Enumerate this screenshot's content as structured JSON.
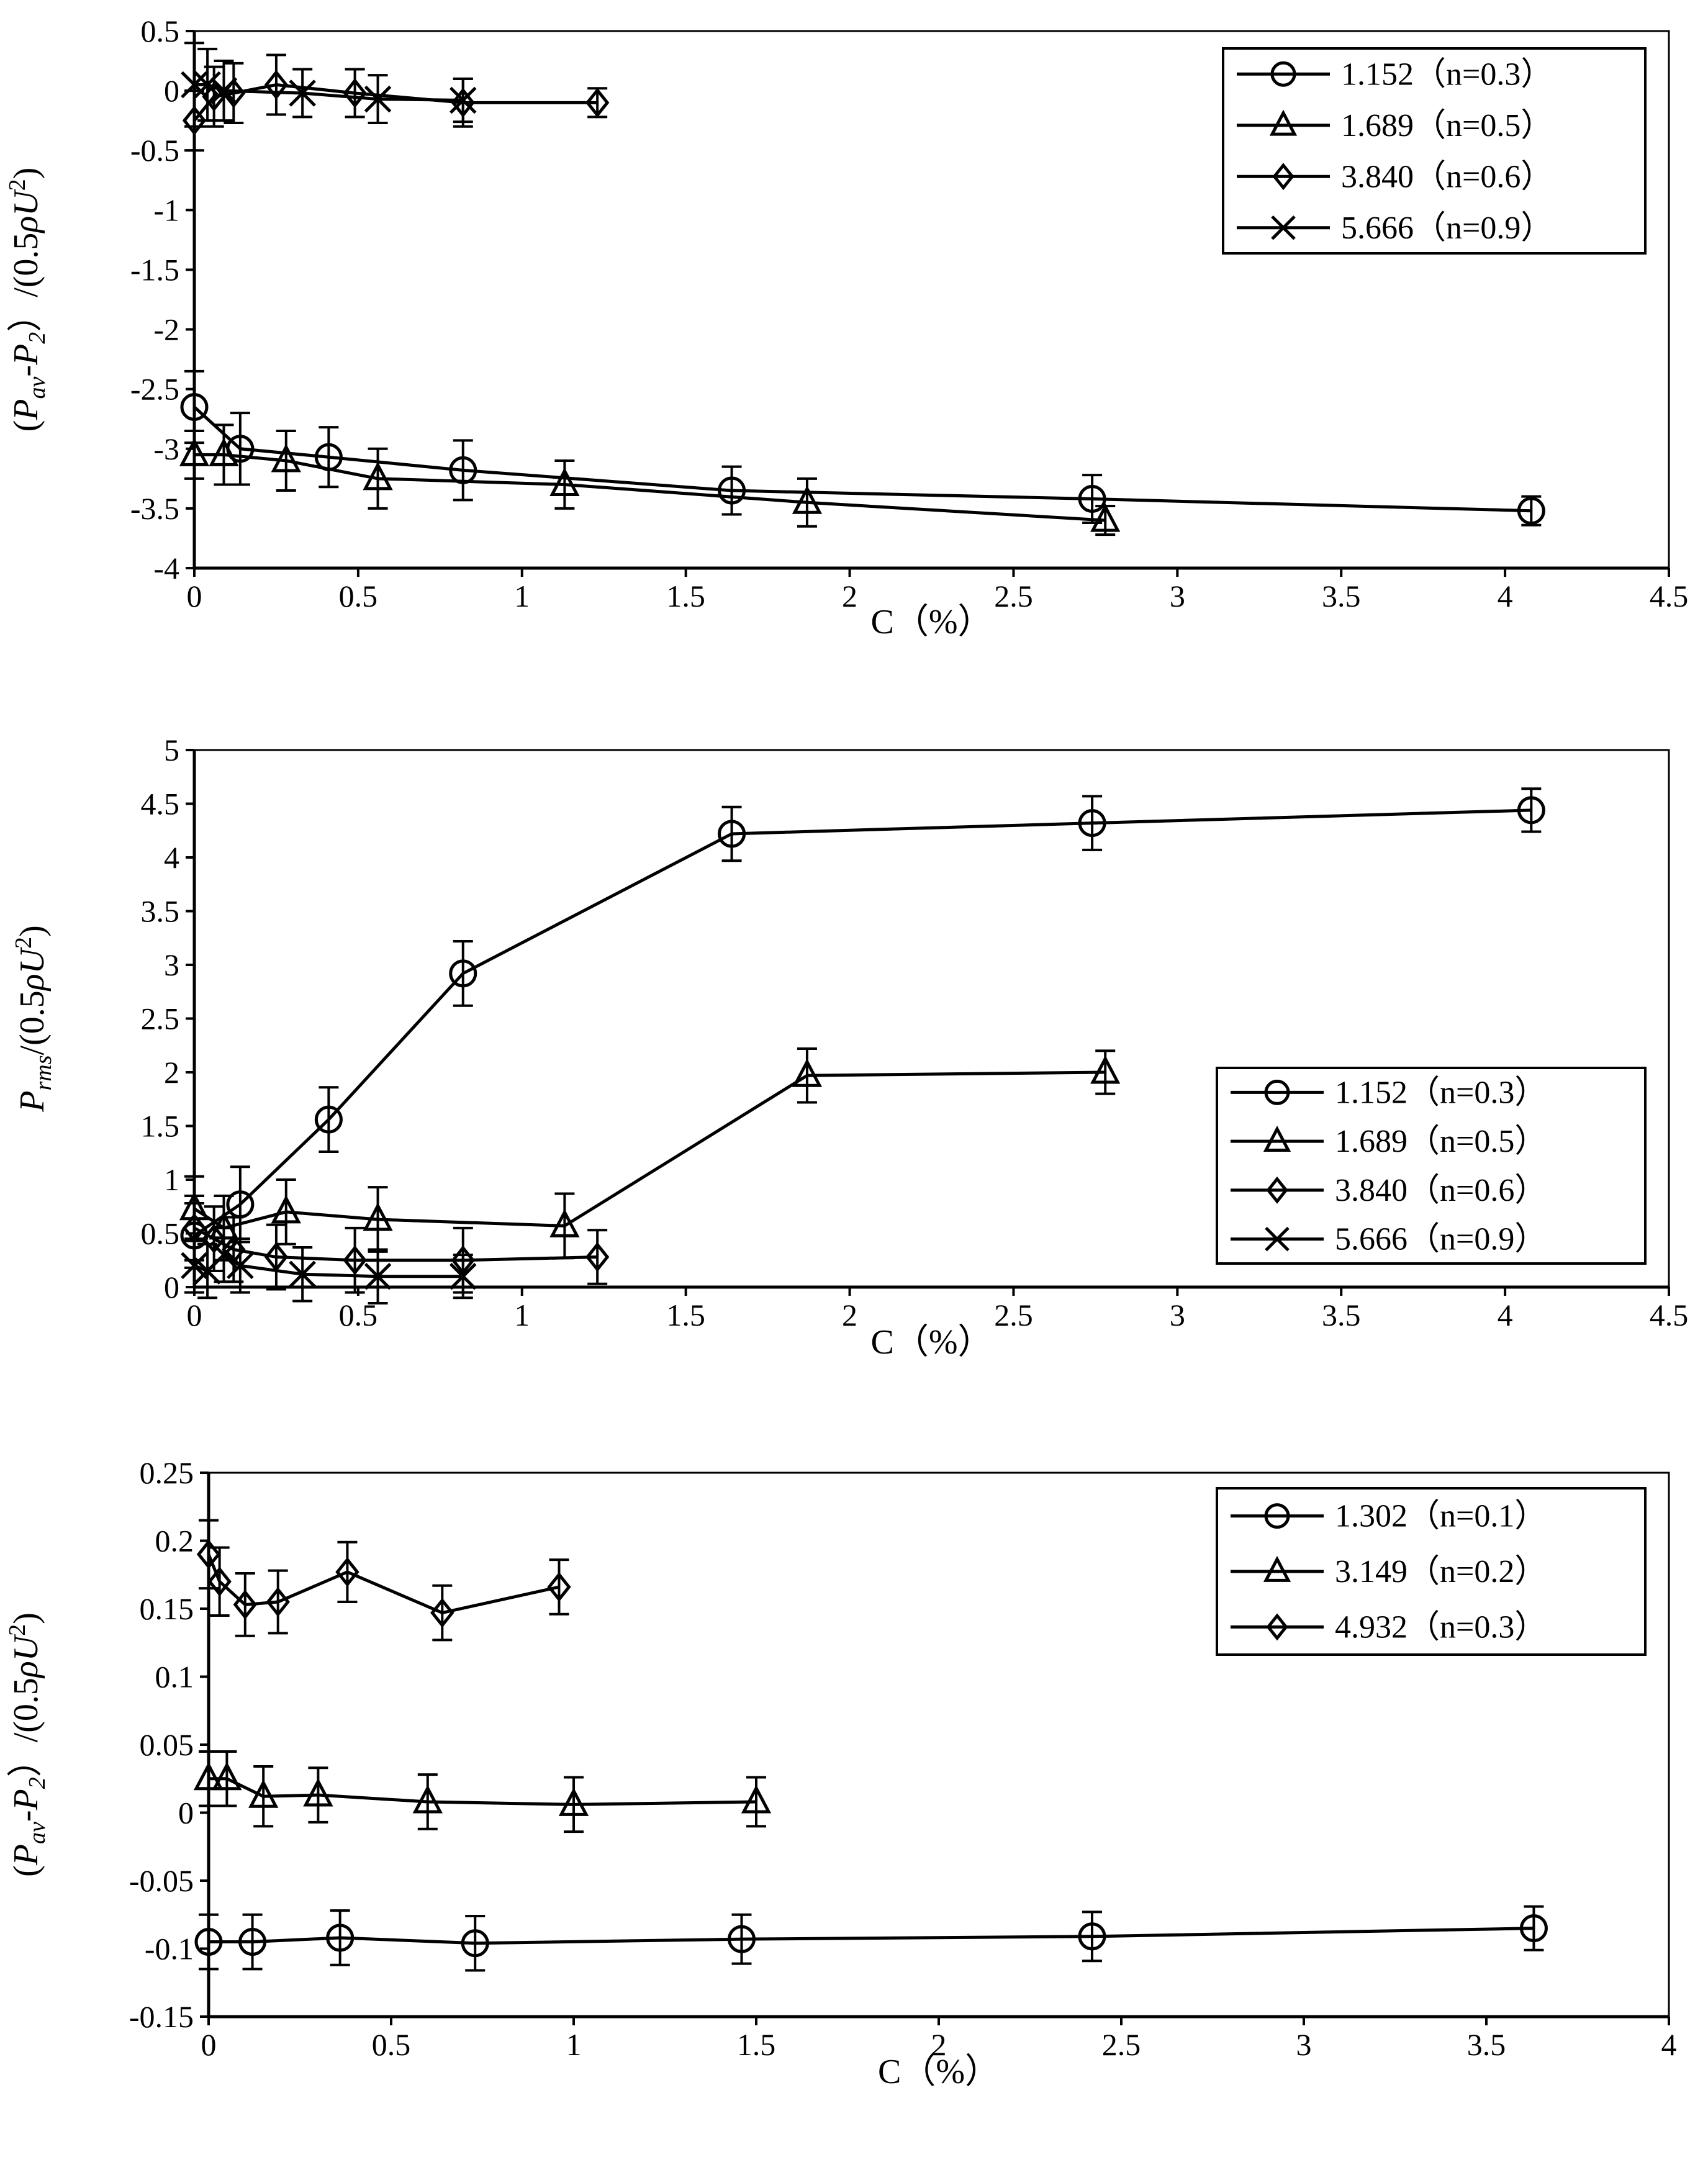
{
  "chart_data": [
    {
      "type": "line",
      "title": "",
      "xlabel": "C（%）",
      "ylabel": "(Pav-P2）/(0.5ρU²)",
      "ylabel_parts": {
        "open": "(",
        "P1": "P",
        "sub1": "av",
        "dash": "-",
        "P2": "P",
        "sub2": "2",
        "mid": "）/(0.5",
        "rho": "ρ",
        "U": "U",
        "sup": "2",
        "close": ")"
      },
      "xlim": [
        0,
        4.5
      ],
      "ylim": [
        -4,
        0.5
      ],
      "xticks": [
        "0",
        "0.5",
        "1",
        "1.5",
        "2",
        "2.5",
        "3",
        "3.5",
        "4",
        "4.5"
      ],
      "yticks": [
        "-4",
        "-3.5",
        "-3",
        "-2.5",
        "-2",
        "-1.5",
        "-1",
        "-0.5",
        "0",
        "0.5"
      ],
      "legend_position": "top-right",
      "series": [
        {
          "name": "1.152（n=0.3）",
          "marker": "circle",
          "x": [
            0.0,
            0.14,
            0.41,
            0.82,
            1.64,
            2.74,
            4.08
          ],
          "y": [
            -2.65,
            -3.0,
            -3.07,
            -3.18,
            -3.35,
            -3.42,
            -3.52
          ],
          "err": [
            0.3,
            0.3,
            0.25,
            0.25,
            0.2,
            0.2,
            0.12
          ]
        },
        {
          "name": "1.689（n=0.5）",
          "marker": "triangle",
          "x": [
            0.0,
            0.09,
            0.28,
            0.56,
            1.13,
            1.87,
            2.78
          ],
          "y": [
            -3.05,
            -3.05,
            -3.1,
            -3.25,
            -3.3,
            -3.45,
            -3.6
          ],
          "err": [
            0.2,
            0.25,
            0.25,
            0.25,
            0.2,
            0.2,
            0.12
          ]
        },
        {
          "name": "3.840（n=0.6）",
          "marker": "diamond",
          "x": [
            0.0,
            0.06,
            0.12,
            0.25,
            0.49,
            0.82,
            1.23
          ],
          "y": [
            -0.25,
            -0.05,
            -0.02,
            0.05,
            -0.02,
            -0.1,
            -0.1
          ],
          "err": [
            0.25,
            0.25,
            0.25,
            0.25,
            0.2,
            0.2,
            0.12
          ]
        },
        {
          "name": "5.666（n=0.9）",
          "marker": "x",
          "x": [
            0.0,
            0.04,
            0.09,
            0.33,
            0.56,
            0.82
          ],
          "y": [
            0.05,
            0.05,
            0.0,
            -0.02,
            -0.07,
            -0.08
          ],
          "err": [
            0.35,
            0.3,
            0.25,
            0.2,
            0.2,
            0.18
          ]
        }
      ]
    },
    {
      "type": "line",
      "title": "",
      "xlabel": "C（%）",
      "ylabel": "Prms/(0.5ρU²)",
      "ylabel_parts": {
        "P": "P",
        "sub": "rms",
        "mid": "/(0.5",
        "rho": "ρ",
        "U": "U",
        "sup": "2",
        "close": ")"
      },
      "xlim": [
        0,
        4.5
      ],
      "ylim": [
        0,
        5
      ],
      "xticks": [
        "0",
        "0.5",
        "1",
        "1.5",
        "2",
        "2.5",
        "3",
        "3.5",
        "4",
        "4.5"
      ],
      "yticks": [
        "0",
        "0.5",
        "1",
        "1.5",
        "2",
        "2.5",
        "3",
        "3.5",
        "4",
        "4.5",
        "5"
      ],
      "legend_position": "bottom-right",
      "series": [
        {
          "name": "1.152（n=0.3）",
          "marker": "circle",
          "x": [
            0.0,
            0.14,
            0.41,
            0.82,
            1.64,
            2.74,
            4.08
          ],
          "y": [
            0.48,
            0.77,
            1.56,
            2.92,
            4.22,
            4.32,
            4.44
          ],
          "err": [
            0.3,
            0.35,
            0.3,
            0.3,
            0.25,
            0.25,
            0.2
          ]
        },
        {
          "name": "1.689（n=0.5）",
          "marker": "triangle",
          "x": [
            0.0,
            0.09,
            0.28,
            0.56,
            1.13,
            1.87,
            2.78
          ],
          "y": [
            0.73,
            0.55,
            0.7,
            0.63,
            0.57,
            1.97,
            2.0
          ],
          "err": [
            0.3,
            0.3,
            0.3,
            0.3,
            0.3,
            0.25,
            0.2
          ]
        },
        {
          "name": "3.840（n=0.6）",
          "marker": "diamond",
          "x": [
            0.0,
            0.06,
            0.12,
            0.25,
            0.49,
            0.82,
            1.23
          ],
          "y": [
            0.55,
            0.45,
            0.35,
            0.28,
            0.25,
            0.25,
            0.28
          ],
          "err": [
            0.3,
            0.3,
            0.3,
            0.3,
            0.3,
            0.3,
            0.25
          ]
        },
        {
          "name": "5.666（n=0.9）",
          "marker": "x",
          "x": [
            0.0,
            0.04,
            0.09,
            0.14,
            0.33,
            0.56,
            0.82
          ],
          "y": [
            0.2,
            0.15,
            0.3,
            0.2,
            0.12,
            0.1,
            0.1
          ],
          "err": [
            0.25,
            0.25,
            0.25,
            0.25,
            0.25,
            0.25,
            0.2
          ]
        }
      ]
    },
    {
      "type": "line",
      "title": "",
      "xlabel": "C（%）",
      "ylabel": "(Pav-P2）/(0.5ρU²)",
      "ylabel_parts": {
        "open": "(",
        "P1": "P",
        "sub1": "av",
        "dash": "-",
        "P2": "P",
        "sub2": "2",
        "mid": "）/(0.5",
        "rho": "ρ",
        "U": "U",
        "sup": "2",
        "close": ")"
      },
      "xlim": [
        0,
        4
      ],
      "ylim": [
        -0.15,
        0.25
      ],
      "xticks": [
        "0",
        "0.5",
        "1",
        "1.5",
        "2",
        "2.5",
        "3",
        "3.5",
        "4"
      ],
      "yticks": [
        "-0.15",
        "-0.1",
        "-0.05",
        "0",
        "0.05",
        "0.1",
        "0.15",
        "0.2",
        "0.25"
      ],
      "legend_position": "top-right",
      "series": [
        {
          "name": "1.302（n=0.1）",
          "marker": "circle",
          "x": [
            0.0,
            0.12,
            0.36,
            0.73,
            1.46,
            2.42,
            3.63
          ],
          "y": [
            -0.095,
            -0.095,
            -0.092,
            -0.096,
            -0.093,
            -0.091,
            -0.085
          ],
          "err": [
            0.02,
            0.02,
            0.02,
            0.02,
            0.018,
            0.018,
            0.016
          ]
        },
        {
          "name": "3.149（n=0.2）",
          "marker": "triangle",
          "x": [
            0.0,
            0.05,
            0.15,
            0.3,
            0.6,
            1.0,
            1.5
          ],
          "y": [
            0.025,
            0.025,
            0.012,
            0.013,
            0.008,
            0.006,
            0.008
          ],
          "err": [
            0.02,
            0.02,
            0.022,
            0.02,
            0.02,
            0.02,
            0.018
          ]
        },
        {
          "name": "4.932（n=0.3）",
          "marker": "diamond",
          "x": [
            0.0,
            0.03,
            0.1,
            0.19,
            0.38,
            0.64,
            0.96
          ],
          "y": [
            0.19,
            0.17,
            0.153,
            0.155,
            0.177,
            0.147,
            0.166
          ],
          "err": [
            0.025,
            0.025,
            0.023,
            0.023,
            0.022,
            0.02,
            0.02
          ]
        }
      ]
    }
  ]
}
